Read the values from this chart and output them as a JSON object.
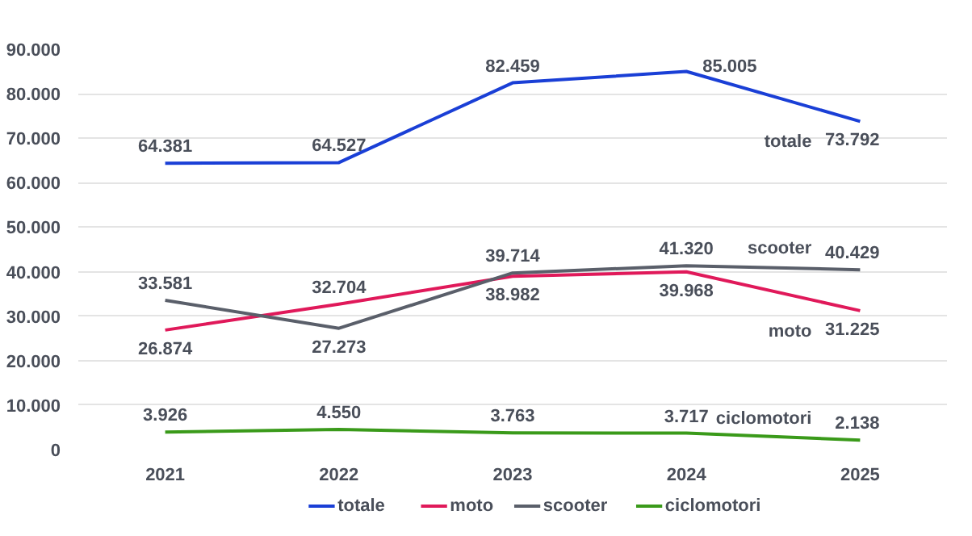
{
  "chart_data": {
    "type": "line",
    "categories": [
      "2021",
      "2022",
      "2023",
      "2024",
      "2025"
    ],
    "series": [
      {
        "name": "totale",
        "color": "#1a3fd6",
        "values": [
          64381,
          64527,
          82459,
          85005,
          73792
        ],
        "value_labels": [
          "64.381",
          "64.527",
          "82.459",
          "85.005",
          "73.792"
        ]
      },
      {
        "name": "moto",
        "color": "#e0195a",
        "values": [
          26874,
          32704,
          38982,
          39968,
          31225
        ],
        "value_labels": [
          "26.874",
          "32.704",
          "38.982",
          "39.968",
          "31.225"
        ]
      },
      {
        "name": "scooter",
        "color": "#5a5f6a",
        "values": [
          33581,
          27273,
          39714,
          41320,
          40429
        ],
        "value_labels": [
          "33.581",
          "27.273",
          "39.714",
          "41.320",
          "40.429"
        ]
      },
      {
        "name": "ciclomotori",
        "color": "#3a9a1a",
        "values": [
          3926,
          4550,
          3763,
          3717,
          2138
        ],
        "value_labels": [
          "3.926",
          "4.550",
          "3.763",
          "3.717",
          "2.138"
        ]
      }
    ],
    "ylim": [
      0,
      90000
    ],
    "yticks": [
      0,
      {
        "value": 10000,
        "label": "10.000"
      },
      {
        "value": 20000,
        "label": "20.000"
      },
      {
        "value": 30000,
        "label": "30.000"
      },
      {
        "value": 40000,
        "label": "40.000"
      },
      {
        "value": 50000,
        "label": "50.000"
      },
      {
        "value": 60000,
        "label": "60.000"
      },
      {
        "value": 70000,
        "label": "70.000"
      },
      {
        "value": 80000,
        "label": "80.000"
      },
      {
        "value": 90000,
        "label": "90.000"
      }
    ],
    "grid": "y",
    "legend": "bottom",
    "marker": "none",
    "line_style": "solid"
  }
}
